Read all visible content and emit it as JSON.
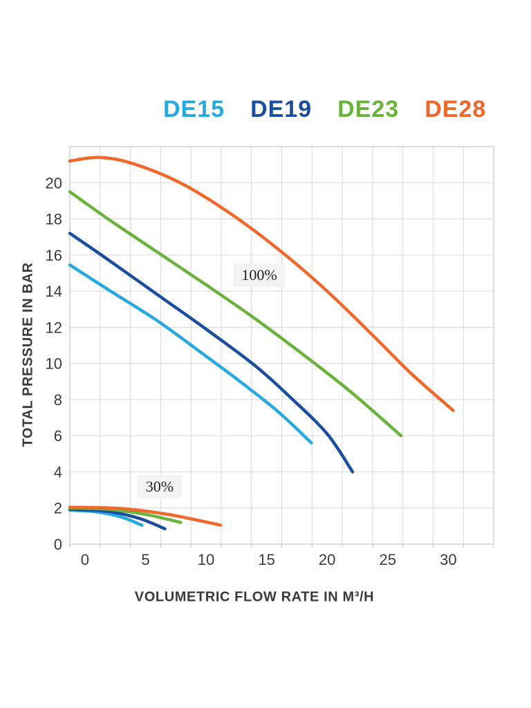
{
  "page": {
    "background": "#ffffff"
  },
  "legend": {
    "position": "top",
    "items": [
      {
        "label": "DE15",
        "color": "#27AAE1"
      },
      {
        "label": "DE19",
        "color": "#1B4E9E"
      },
      {
        "label": "DE23",
        "color": "#6CB33E"
      },
      {
        "label": "DE28",
        "color": "#F1682A"
      }
    ]
  },
  "chart_data": {
    "type": "line",
    "title": "",
    "xlabel": "VOLUMETRIC FLOW RATE IN M³/H",
    "ylabel": "TOTAL PRESSURE IN BAR",
    "grid": true,
    "grid_color": "#D9D9D9",
    "frame_color": "#C9C9C9",
    "tick_mark_color": "#BFBFBF",
    "legend_position": "top",
    "x_axis": {
      "min": -1.25,
      "max": 33.75,
      "grid_step": 2.5,
      "tick_values": [
        0,
        5,
        10,
        15,
        20,
        25,
        30
      ],
      "tick_labels": [
        "0",
        "5",
        "10",
        "15",
        "20",
        "25",
        "30"
      ]
    },
    "y_axis": {
      "min": 0,
      "max": 22,
      "grid_step": 2,
      "tick_values": [
        0,
        2,
        4,
        6,
        8,
        10,
        12,
        14,
        16,
        18,
        20
      ],
      "tick_labels": [
        "0",
        "2",
        "4",
        "6",
        "8",
        "10",
        "12",
        "14",
        "16",
        "18",
        "20"
      ]
    },
    "annotations": [
      {
        "text": "100%",
        "x": 14.4,
        "y": 14.88
      },
      {
        "text": "30%",
        "x": 6.17,
        "y": 3.17
      }
    ],
    "series": [
      {
        "name": "DE15",
        "load": "100%",
        "color": "#27AAE1",
        "points": [
          [
            -1.25,
            15.45
          ],
          [
            2,
            14.05
          ],
          [
            6,
            12.35
          ],
          [
            10,
            10.4
          ],
          [
            13,
            8.9
          ],
          [
            16,
            7.3
          ],
          [
            18.7,
            5.6
          ]
        ]
      },
      {
        "name": "DE19",
        "load": "100%",
        "color": "#1B4E9E",
        "points": [
          [
            -1.25,
            17.2
          ],
          [
            2,
            15.7
          ],
          [
            6,
            13.8
          ],
          [
            10,
            11.9
          ],
          [
            14,
            9.9
          ],
          [
            17,
            8.1
          ],
          [
            20,
            6.1
          ],
          [
            22.1,
            4.0
          ]
        ]
      },
      {
        "name": "DE23",
        "load": "100%",
        "color": "#6CB33E",
        "points": [
          [
            -1.25,
            19.5
          ],
          [
            2,
            17.95
          ],
          [
            6,
            16.15
          ],
          [
            10,
            14.35
          ],
          [
            14,
            12.5
          ],
          [
            18,
            10.5
          ],
          [
            22,
            8.4
          ],
          [
            26.1,
            6.0
          ]
        ]
      },
      {
        "name": "DE28",
        "load": "100%",
        "color": "#F1682A",
        "points": [
          [
            -1.25,
            21.2
          ],
          [
            1.2,
            21.4
          ],
          [
            4,
            21.05
          ],
          [
            8,
            19.95
          ],
          [
            12,
            18.3
          ],
          [
            16,
            16.3
          ],
          [
            20,
            14.0
          ],
          [
            24,
            11.4
          ],
          [
            27,
            9.4
          ],
          [
            30.4,
            7.4
          ]
        ]
      },
      {
        "name": "DE15",
        "load": "30%",
        "color": "#27AAE1",
        "points": [
          [
            -1.25,
            1.88
          ],
          [
            1,
            1.78
          ],
          [
            3,
            1.5
          ],
          [
            4.7,
            1.05
          ]
        ]
      },
      {
        "name": "DE19",
        "load": "30%",
        "color": "#1B4E9E",
        "points": [
          [
            -1.25,
            1.93
          ],
          [
            2,
            1.8
          ],
          [
            4.5,
            1.42
          ],
          [
            6.6,
            0.85
          ]
        ]
      },
      {
        "name": "DE23",
        "load": "30%",
        "color": "#6CB33E",
        "points": [
          [
            -1.25,
            2.0
          ],
          [
            2,
            1.93
          ],
          [
            5,
            1.65
          ],
          [
            7.9,
            1.2
          ]
        ]
      },
      {
        "name": "DE28",
        "load": "30%",
        "color": "#F1682A",
        "points": [
          [
            -1.25,
            2.04
          ],
          [
            3,
            1.97
          ],
          [
            7,
            1.63
          ],
          [
            11.2,
            1.05
          ]
        ]
      }
    ]
  }
}
